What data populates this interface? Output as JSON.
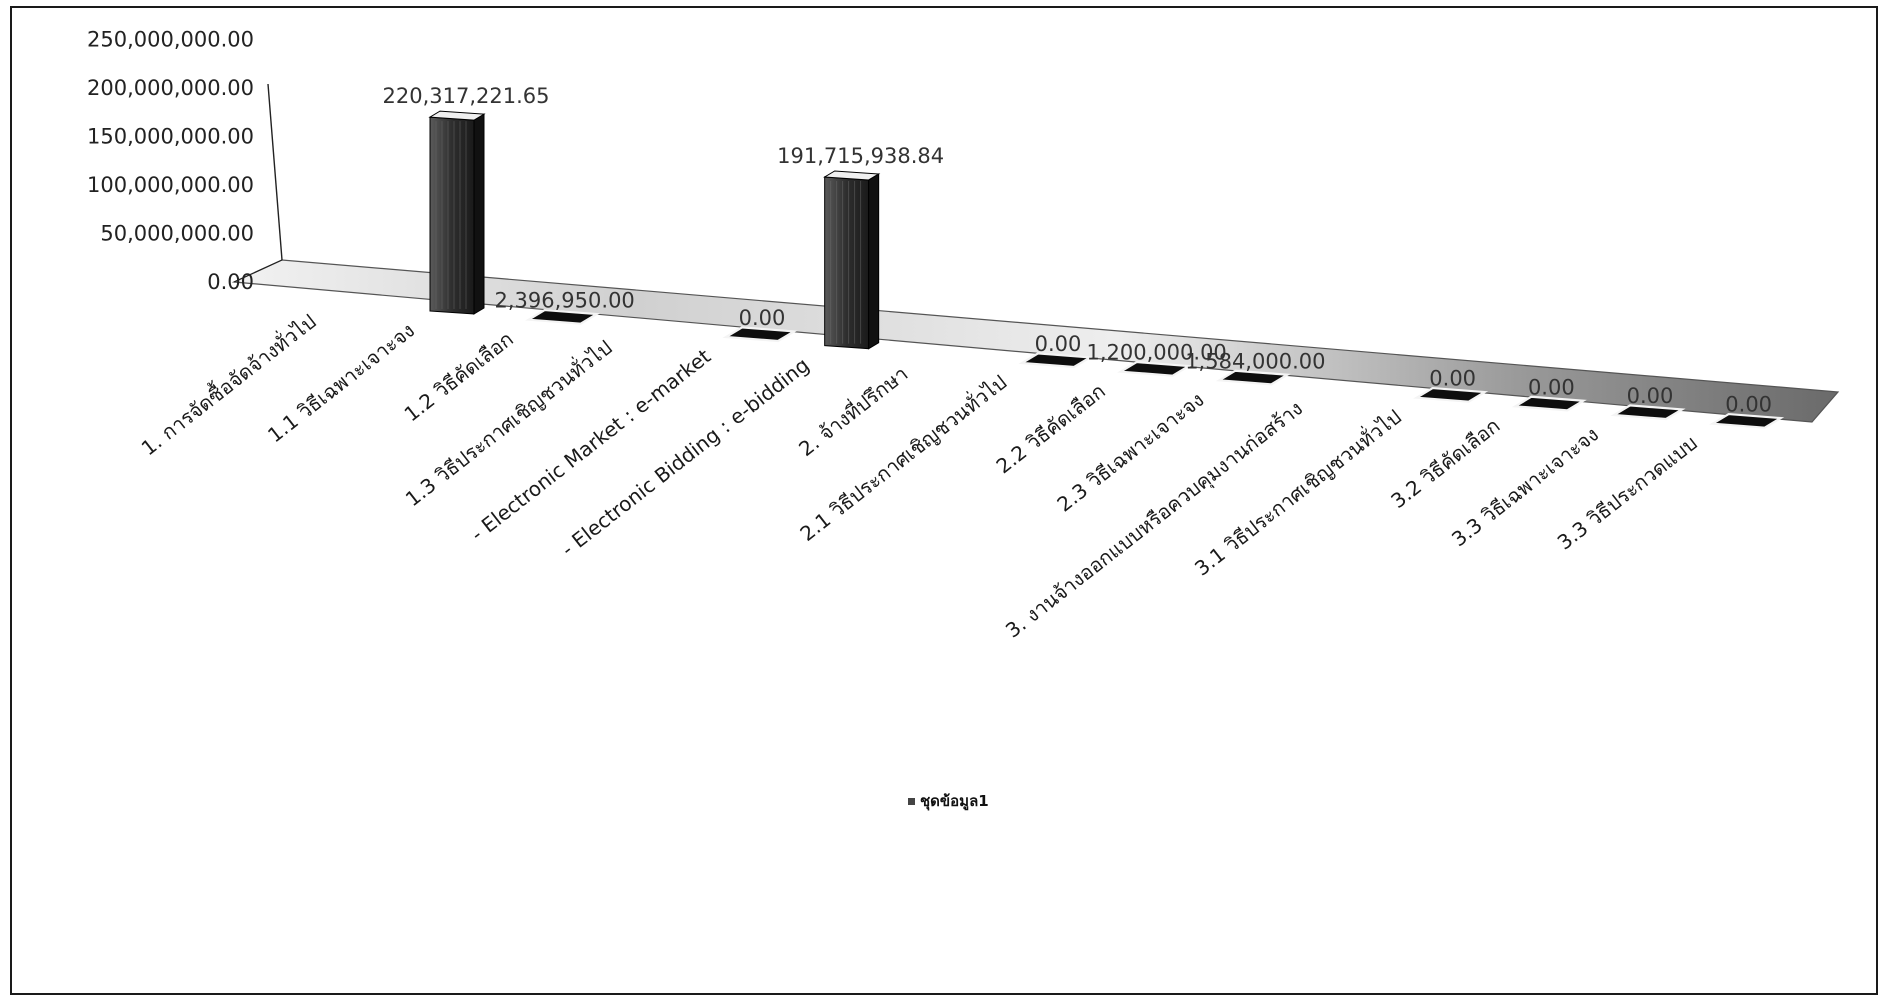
{
  "chart_data": {
    "type": "bar",
    "title": "",
    "xlabel": "",
    "ylabel": "",
    "ylim": [
      0,
      250000000
    ],
    "yticks": [
      "0.00",
      "50,000,000.00",
      "100,000,000.00",
      "150,000,000.00",
      "200,000,000.00",
      "250,000,000.00"
    ],
    "categories": [
      "1. การจัดซื้อจัดจ้างทั่วไป",
      "1.1 วิธีเฉพาะเจาะจง",
      "1.2 วิธีคัดเลือก",
      "1.3 วิธีประกาศเชิญชวนทั่วไป",
      "- Electronic Market : e-market",
      "- Electronic Bidding : e-bidding",
      "2. จ้างที่ปรึกษา",
      "2.1 วิธีประกาศเชิญชวนทั่วไป",
      "2.2 วิธีคัดเลือก",
      "2.3 วิธีเฉพาะเจาะจง",
      "3. งานจ้างออกแบบหรือควบคุมงานก่อสร้าง",
      "3.1 วิธีประกาศเชิญชวนทั่วไป",
      "3.2 วิธีคัดเลือก",
      "3.3 วิธีเฉพาะเจาะจง",
      "3.3 วิธีประกวดแบบ"
    ],
    "series": [
      {
        "name": "ชุดข้อมูล1",
        "values": [
          null,
          220317221.65,
          2396950,
          null,
          0,
          191715938.84,
          null,
          0,
          1200000,
          1584000,
          null,
          0,
          0,
          0,
          0
        ],
        "data_labels": [
          "",
          "220,317,221.65",
          "2,396,950.00",
          "",
          "0.00",
          "191,715,938.84",
          "",
          "0.00",
          "1,200,000.00",
          "1,584,000.00",
          "",
          "0.00",
          "0.00",
          "0.00",
          "0.00"
        ]
      }
    ],
    "legend": {
      "position": "bottom"
    },
    "grid": false,
    "colors": {
      "bar": "#3a3a3a",
      "bar_dark": "#111111",
      "bar_light": "#7a7a7a",
      "floor": "#d8d8d8",
      "axis": "#222222"
    }
  }
}
